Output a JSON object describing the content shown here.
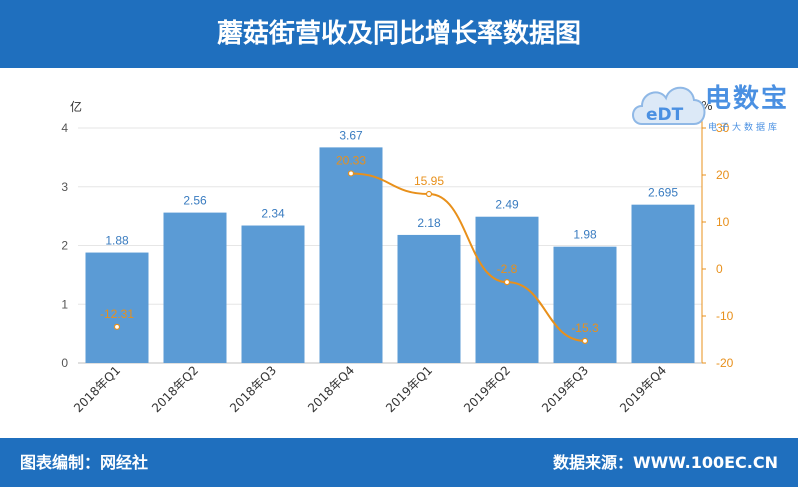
{
  "header": {
    "title": "蘑菇街营收及同比增长率数据图"
  },
  "footer": {
    "left": "图表编制：网经社",
    "right": "数据来源：WWW.100EC.CN"
  },
  "logo": {
    "name": "电数宝",
    "sub": "电子大数据库",
    "mark": "eDT"
  },
  "colors": {
    "header_bg": "#1f6fbe",
    "bar": "#5b9bd5",
    "bar_label": "#3a7cc0",
    "line": "#e8901b",
    "grid": "#e6e6e6",
    "axis_text": "#555555",
    "y2_text": "#e8901b"
  },
  "chart_data": {
    "type": "bar",
    "categories": [
      "2018年Q1",
      "2018年Q2",
      "2018年Q3",
      "2018年Q4",
      "2019年Q1",
      "2019年Q2",
      "2019年Q3",
      "2019年Q4"
    ],
    "series": [
      {
        "values": [
          1.88,
          2.56,
          2.34,
          3.67,
          2.18,
          2.49,
          1.98,
          2.695
        ],
        "value_labels": [
          "1.88",
          "2.56",
          "2.34",
          "3.67",
          "2.18",
          "2.49",
          "1.98",
          "2.695"
        ],
        "type": "bar",
        "axis": "left"
      },
      {
        "values": [
          -12.31,
          null,
          null,
          20.33,
          15.95,
          -2.8,
          -15.3,
          null
        ],
        "value_labels": [
          "-12.31",
          "",
          "",
          "20.33",
          "15.95",
          "-2.8",
          "-15.3",
          ""
        ],
        "type": "line",
        "axis": "right"
      }
    ],
    "ylabel": "亿",
    "y2label": "%",
    "ylim": [
      0,
      4
    ],
    "yticks": [
      "0",
      "1",
      "2",
      "3",
      "4"
    ],
    "y2lim": [
      -20,
      30
    ],
    "y2ticks": [
      "-20",
      "-10",
      "0",
      "10",
      "20",
      "30"
    ],
    "grid": true,
    "legend": "none"
  }
}
